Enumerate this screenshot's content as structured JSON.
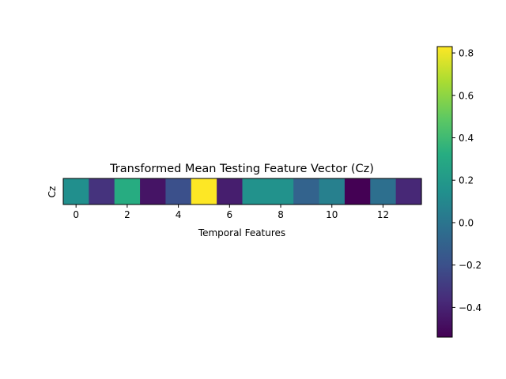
{
  "chart_data": {
    "type": "heatmap",
    "title": "Transformed Mean Testing Feature Vector (Cz)",
    "xlabel": "Temporal Features",
    "ylabel": "",
    "row_labels": [
      "Cz"
    ],
    "x_ticks": [
      0,
      2,
      4,
      6,
      8,
      10,
      12
    ],
    "values": [
      0.14,
      -0.33,
      0.32,
      -0.46,
      -0.2,
      0.83,
      -0.42,
      0.16,
      0.16,
      -0.1,
      0.06,
      -0.54,
      -0.03,
      -0.38
    ],
    "colormap": "viridis",
    "colorbar": {
      "range": [
        -0.54,
        0.83
      ],
      "ticks": [
        -0.4,
        -0.2,
        0.0,
        0.2,
        0.4,
        0.6,
        0.8
      ],
      "tick_labels": [
        "−0.4",
        "−0.2",
        "0.0",
        "0.2",
        "0.4",
        "0.6",
        "0.8"
      ]
    },
    "grid": false
  }
}
